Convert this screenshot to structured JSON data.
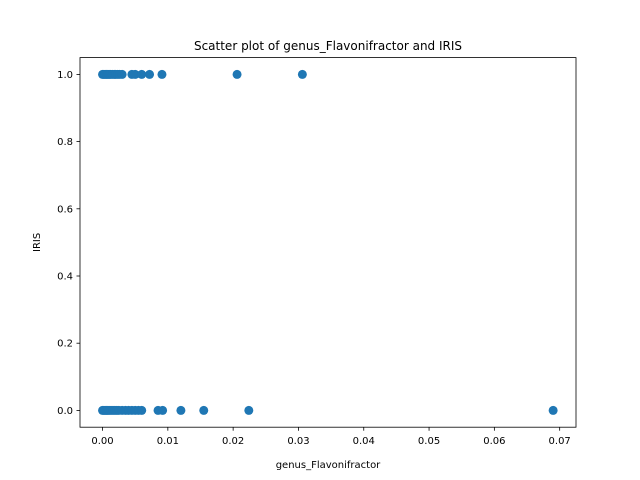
{
  "chart_data": {
    "type": "scatter",
    "title": "Scatter plot of genus_Flavonifractor and IRIS",
    "xlabel": "genus_Flavonifractor",
    "ylabel": "IRIS",
    "xlim": [
      -0.00345,
      0.0725
    ],
    "ylim": [
      -0.05,
      1.05
    ],
    "xticks": [
      0.0,
      0.01,
      0.02,
      0.03,
      0.04,
      0.05,
      0.06,
      0.07
    ],
    "xtick_labels": [
      "0.00",
      "0.01",
      "0.02",
      "0.03",
      "0.04",
      "0.05",
      "0.06",
      "0.07"
    ],
    "yticks": [
      0.0,
      0.2,
      0.4,
      0.6,
      0.8,
      1.0
    ],
    "ytick_labels": [
      "0.0",
      "0.2",
      "0.4",
      "0.6",
      "0.8",
      "1.0"
    ],
    "grid": false,
    "marker_color": "#1f77b4",
    "series": [
      {
        "points": [
          {
            "x": 0.0,
            "y": 1
          },
          {
            "x": 0.0002,
            "y": 1
          },
          {
            "x": 0.0004,
            "y": 1
          },
          {
            "x": 0.0006,
            "y": 1
          },
          {
            "x": 0.0008,
            "y": 1
          },
          {
            "x": 0.001,
            "y": 1
          },
          {
            "x": 0.0012,
            "y": 1
          },
          {
            "x": 0.0015,
            "y": 1
          },
          {
            "x": 0.0018,
            "y": 1
          },
          {
            "x": 0.002,
            "y": 1
          },
          {
            "x": 0.0023,
            "y": 1
          },
          {
            "x": 0.0026,
            "y": 1
          },
          {
            "x": 0.003,
            "y": 1
          },
          {
            "x": 0.0045,
            "y": 1
          },
          {
            "x": 0.005,
            "y": 1
          },
          {
            "x": 0.006,
            "y": 1
          },
          {
            "x": 0.0072,
            "y": 1
          },
          {
            "x": 0.0091,
            "y": 1
          },
          {
            "x": 0.0206,
            "y": 1
          },
          {
            "x": 0.0306,
            "y": 1
          },
          {
            "x": 0.0,
            "y": 0
          },
          {
            "x": 0.0002,
            "y": 0
          },
          {
            "x": 0.0004,
            "y": 0
          },
          {
            "x": 0.0006,
            "y": 0
          },
          {
            "x": 0.0008,
            "y": 0
          },
          {
            "x": 0.001,
            "y": 0
          },
          {
            "x": 0.0013,
            "y": 0
          },
          {
            "x": 0.0016,
            "y": 0
          },
          {
            "x": 0.0019,
            "y": 0
          },
          {
            "x": 0.0022,
            "y": 0
          },
          {
            "x": 0.0025,
            "y": 0
          },
          {
            "x": 0.003,
            "y": 0
          },
          {
            "x": 0.0035,
            "y": 0
          },
          {
            "x": 0.004,
            "y": 0
          },
          {
            "x": 0.0045,
            "y": 0
          },
          {
            "x": 0.005,
            "y": 0
          },
          {
            "x": 0.0055,
            "y": 0
          },
          {
            "x": 0.006,
            "y": 0
          },
          {
            "x": 0.0085,
            "y": 0
          },
          {
            "x": 0.0092,
            "y": 0
          },
          {
            "x": 0.012,
            "y": 0
          },
          {
            "x": 0.0155,
            "y": 0
          },
          {
            "x": 0.0224,
            "y": 0
          },
          {
            "x": 0.069,
            "y": 0
          }
        ]
      }
    ]
  }
}
